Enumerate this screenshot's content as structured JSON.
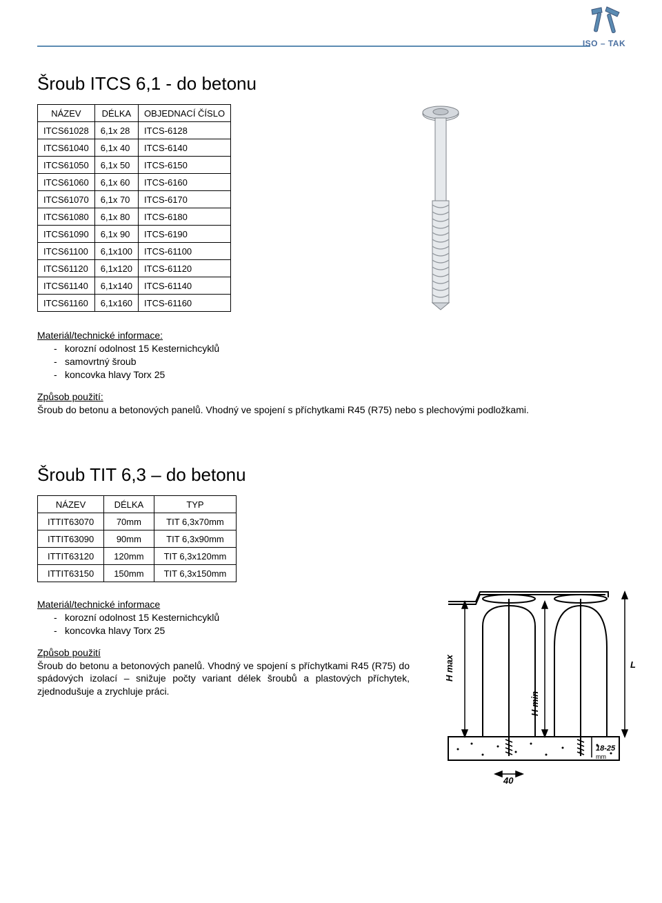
{
  "brand": {
    "name": "ISO – TAK",
    "logo_colors": {
      "body": "#5b8bb2",
      "hammer": "#3d557a"
    }
  },
  "product1": {
    "title": "Šroub ITCS 6,1 - do betonu",
    "table": {
      "headers": [
        "NÁZEV",
        "DÉLKA",
        "OBJEDNACÍ ČÍSLO"
      ],
      "rows": [
        [
          "ITCS61028",
          "6,1x 28",
          "ITCS-6128"
        ],
        [
          "ITCS61040",
          "6,1x 40",
          "ITCS-6140"
        ],
        [
          "ITCS61050",
          "6,1x 50",
          "ITCS-6150"
        ],
        [
          "ITCS61060",
          "6,1x 60",
          "ITCS-6160"
        ],
        [
          "ITCS61070",
          "6,1x 70",
          "ITCS-6170"
        ],
        [
          "ITCS61080",
          "6,1x 80",
          "ITCS-6180"
        ],
        [
          "ITCS61090",
          "6,1x 90",
          "ITCS-6190"
        ],
        [
          "ITCS61100",
          "6,1x100",
          "ITCS-61100"
        ],
        [
          "ITCS61120",
          "6,1x120",
          "ITCS-61120"
        ],
        [
          "ITCS61140",
          "6,1x140",
          "ITCS-61140"
        ],
        [
          "ITCS61160",
          "6,1x160",
          "ITCS-61160"
        ]
      ]
    },
    "material": {
      "title": "Materiál/technické informace:",
      "items": [
        "korozní odolnost 15 Kesternichcyklů",
        "samovrtný šroub",
        "koncovka hlavy Torx 25"
      ]
    },
    "usage": {
      "title": "Způsob použití:",
      "text": "Šroub do betonu a betonových panelů. Vhodný ve spojení s příchytkami R45 (R75) nebo s plechovými podložkami."
    },
    "screw": {
      "head_color": "#c7cdd3",
      "shaft_color": "#dfe3e7",
      "thread_color": "#c1c7cc",
      "outline": "#7d8288"
    }
  },
  "product2": {
    "title": "Šroub TIT 6,3 – do betonu",
    "table": {
      "headers": [
        "NÁZEV",
        "DÉLKA",
        "TYP"
      ],
      "rows": [
        [
          "ITTIT63070",
          "70mm",
          "TIT 6,3x70mm"
        ],
        [
          "ITTIT63090",
          "90mm",
          "TIT 6,3x90mm"
        ],
        [
          "ITTIT63120",
          "120mm",
          "TIT 6,3x120mm"
        ],
        [
          "ITTIT63150",
          "150mm",
          "TIT 6,3x150mm"
        ]
      ]
    },
    "material": {
      "title": "Materiál/technické informace",
      "items": [
        "korozní odolnost 15 Kesternichcyklů",
        "koncovka hlavy Torx 25"
      ]
    },
    "usage": {
      "title": "Způsob použití",
      "text": "Šroub do betonu a betonových panelů. Vhodný ve spojení s příchytkami R45 (R75) do spádových izolací – snižuje počty variant délek šroubů a plastových příchytek, zjednodušuje a zrychluje práci."
    },
    "diagram": {
      "labels": {
        "L": "L",
        "Hmax": "H max",
        "Hmin": "H min",
        "range": "18-25",
        "mm": "mm",
        "w": "40"
      }
    }
  }
}
